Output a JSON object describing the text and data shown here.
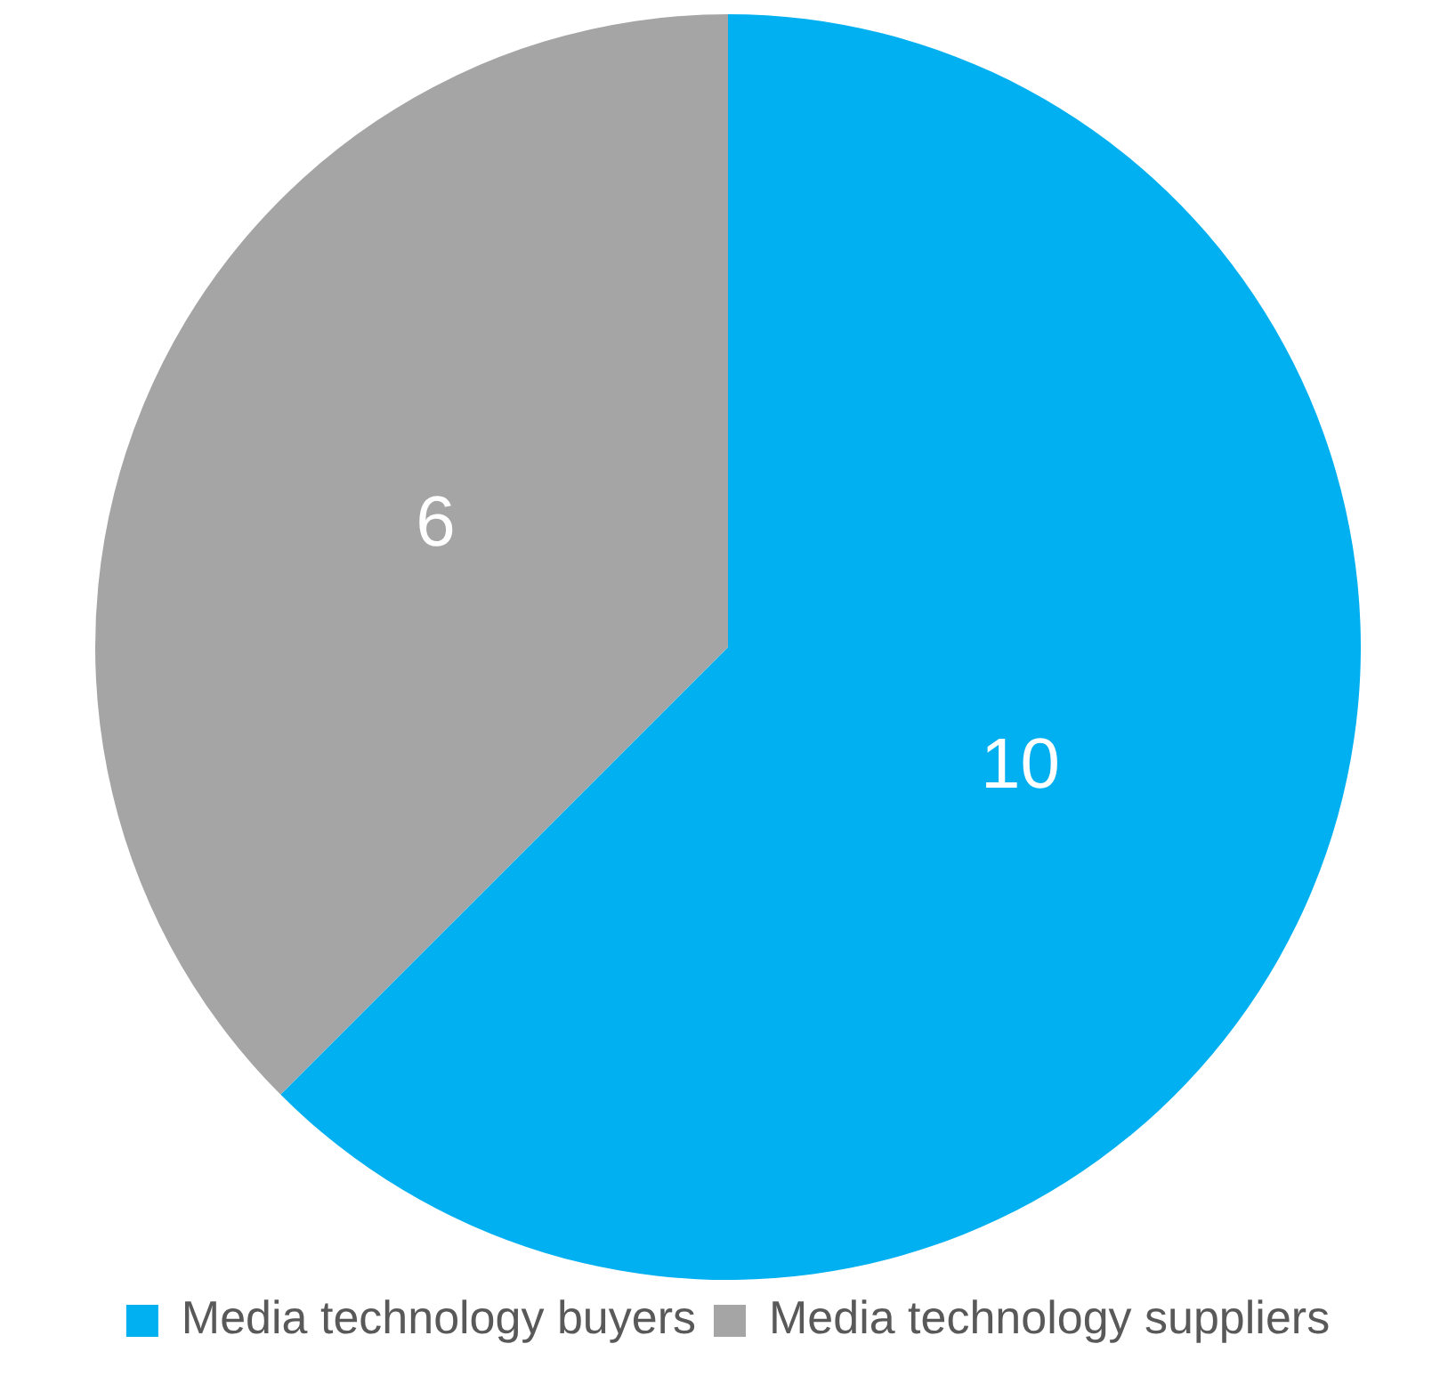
{
  "chart_data": {
    "type": "pie",
    "categories": [
      "Media technology buyers",
      "Media technology suppliers"
    ],
    "values": [
      10,
      6
    ],
    "colors": [
      "#00b0f0",
      "#a5a5a5"
    ],
    "data_labels": true,
    "legend": "bottom"
  }
}
